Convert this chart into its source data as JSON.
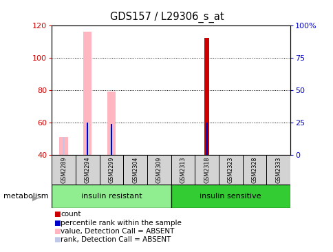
{
  "title": "GDS157 / L29306_s_at",
  "samples": [
    "GSM2289",
    "GSM2294",
    "GSM2299",
    "GSM2304",
    "GSM2309",
    "GSM2313",
    "GSM2318",
    "GSM2323",
    "GSM2328",
    "GSM2333"
  ],
  "ylim_left": [
    40,
    120
  ],
  "ylim_right": [
    0,
    100
  ],
  "yticks_left": [
    40,
    60,
    80,
    100,
    120
  ],
  "yticks_right": [
    0,
    25,
    50,
    75,
    100
  ],
  "ytick_labels_right": [
    "0",
    "25",
    "50",
    "75",
    "100%"
  ],
  "count_bars": {
    "GSM2318": 112
  },
  "percentile_bars": {
    "GSM2294": 25,
    "GSM2299": 24,
    "GSM2318": 25
  },
  "value_absent_bars": {
    "GSM2289": 51,
    "GSM2294": 116,
    "GSM2299": 79
  },
  "rank_absent_bars": {
    "GSM2289": 51,
    "GSM2294": 60,
    "GSM2299": 57
  },
  "groups": [
    {
      "label": "insulin resistant",
      "samples": [
        "GSM2289",
        "GSM2294",
        "GSM2299",
        "GSM2304",
        "GSM2309"
      ],
      "color": "#90EE90"
    },
    {
      "label": "insulin sensitive",
      "samples": [
        "GSM2313",
        "GSM2318",
        "GSM2323",
        "GSM2328",
        "GSM2333"
      ],
      "color": "#33CC33"
    }
  ],
  "bar_color_count": "#CC0000",
  "bar_color_percentile": "#0000CC",
  "bar_color_value_absent": "#FFB6C1",
  "bar_color_rank_absent": "#C0C8E8",
  "background_color": "#ffffff",
  "plot_bg_color": "#ffffff",
  "tick_label_color_left": "#CC0000",
  "tick_label_color_right": "#0000CC",
  "sample_box_color": "#D3D3D3",
  "metabolism_label": "metabolism"
}
